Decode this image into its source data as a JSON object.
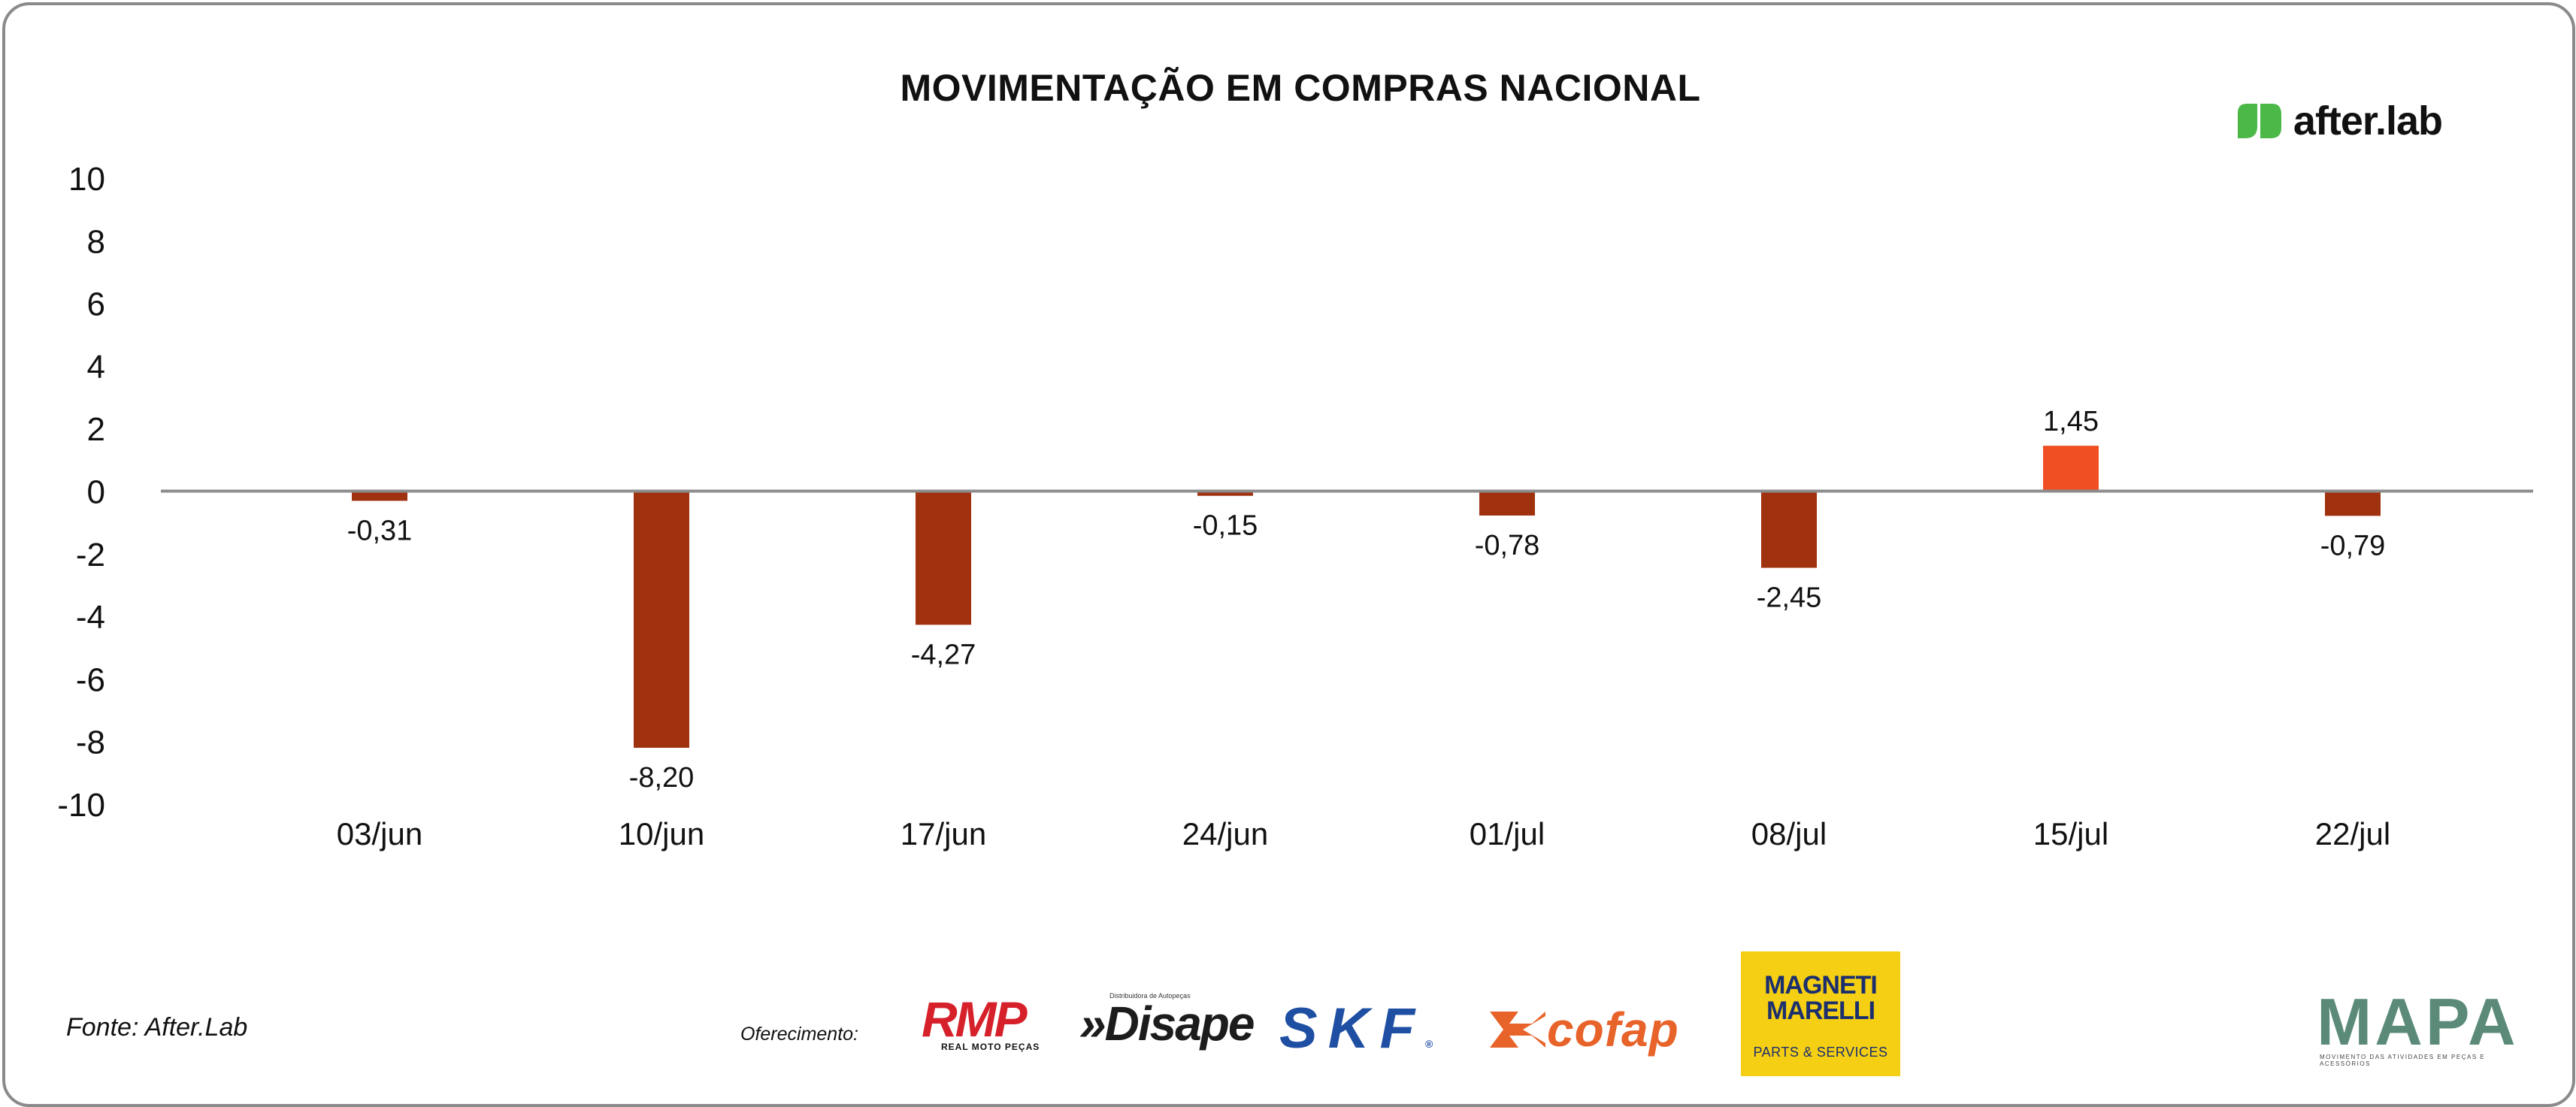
{
  "chart_data": {
    "type": "bar",
    "title": "MOVIMENTAÇÃO EM COMPRAS NACIONAL",
    "categories": [
      "03/jun",
      "10/jun",
      "17/jun",
      "24/jun",
      "01/jul",
      "08/jul",
      "15/jul",
      "22/jul"
    ],
    "values": [
      -0.31,
      -8.2,
      -4.27,
      -0.15,
      -0.78,
      -2.45,
      1.45,
      -0.79
    ],
    "data_labels": [
      "-0,31",
      "-8,20",
      "-4,27",
      "-0,15",
      "-0,78",
      "-2,45",
      "1,45",
      "-0,79"
    ],
    "ylim": [
      -10,
      10
    ],
    "yticks": [
      10,
      8,
      6,
      4,
      2,
      0,
      -2,
      -4,
      -6,
      -8,
      -10
    ],
    "xlabel": "",
    "ylabel": "",
    "grid": false,
    "colors": {
      "negative": "#a0310f",
      "positive": "#f04e23",
      "zero_line": "#8c8c8c",
      "text": "#111111"
    }
  },
  "source": "Fonte: After.Lab",
  "sponsor_label": "Oferecimento:",
  "brand": {
    "name": "after.lab",
    "color": "#4cb848"
  },
  "sponsors": {
    "rmp": {
      "name": "RMP",
      "tagline": "REAL MOTO PEÇAS"
    },
    "disape": {
      "name": "»Disape",
      "tagline": "Distribuidora de Autopeças"
    },
    "skf": {
      "name": "SKF",
      "mark": "®"
    },
    "cofap": {
      "name": "cofap"
    },
    "magneti": {
      "name": "MAGNETI MARELLI",
      "tagline": "PARTS & SERVICES"
    },
    "mapa": {
      "name": "MAPA",
      "tagline": "MOVIMENTO DAS ATIVIDADES EM PEÇAS E ACESSÓRIOS"
    }
  }
}
